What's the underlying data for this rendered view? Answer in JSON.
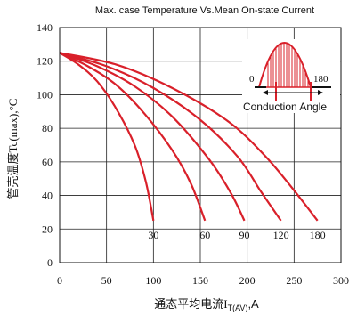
{
  "chart_data": {
    "type": "line",
    "title": "Max. case Temperature Vs.Mean On-state Current",
    "ylabel": "管壳温度Tc(max),°C",
    "xlabel_main": "通态平均电流I",
    "xlabel_sub": "T(AV)",
    "xlabel_tail": ",A",
    "xlim": [
      0,
      300
    ],
    "ylim": [
      0,
      140
    ],
    "xticks": [
      0,
      50,
      100,
      150,
      200,
      250,
      300
    ],
    "yticks": [
      0,
      20,
      40,
      60,
      80,
      100,
      120,
      140
    ],
    "grid": true,
    "line_color": "#d9202a",
    "series": [
      {
        "name": "30",
        "points": [
          [
            0,
            125
          ],
          [
            20,
            118
          ],
          [
            40,
            108
          ],
          [
            60,
            92
          ],
          [
            80,
            70
          ],
          [
            92,
            48
          ],
          [
            100,
            25
          ]
        ]
      },
      {
        "name": "60",
        "points": [
          [
            0,
            125
          ],
          [
            30,
            117
          ],
          [
            60,
            106
          ],
          [
            90,
            89
          ],
          [
            120,
            67
          ],
          [
            140,
            47
          ],
          [
            155,
            25
          ]
        ]
      },
      {
        "name": "90",
        "points": [
          [
            0,
            125
          ],
          [
            40,
            117
          ],
          [
            80,
            105
          ],
          [
            120,
            87
          ],
          [
            160,
            61
          ],
          [
            183,
            41
          ],
          [
            197,
            25
          ]
        ]
      },
      {
        "name": "120",
        "points": [
          [
            0,
            125
          ],
          [
            50,
            117
          ],
          [
            100,
            104
          ],
          [
            150,
            85
          ],
          [
            190,
            63
          ],
          [
            215,
            42
          ],
          [
            236,
            25
          ]
        ]
      },
      {
        "name": "180",
        "points": [
          [
            0,
            125
          ],
          [
            60,
            118
          ],
          [
            120,
            104
          ],
          [
            180,
            84
          ],
          [
            220,
            63
          ],
          [
            250,
            43
          ],
          [
            275,
            25
          ]
        ]
      }
    ],
    "annotations": {
      "inset_label": "Conduction Angle",
      "angle_start": "0",
      "angle_end": "180"
    }
  }
}
